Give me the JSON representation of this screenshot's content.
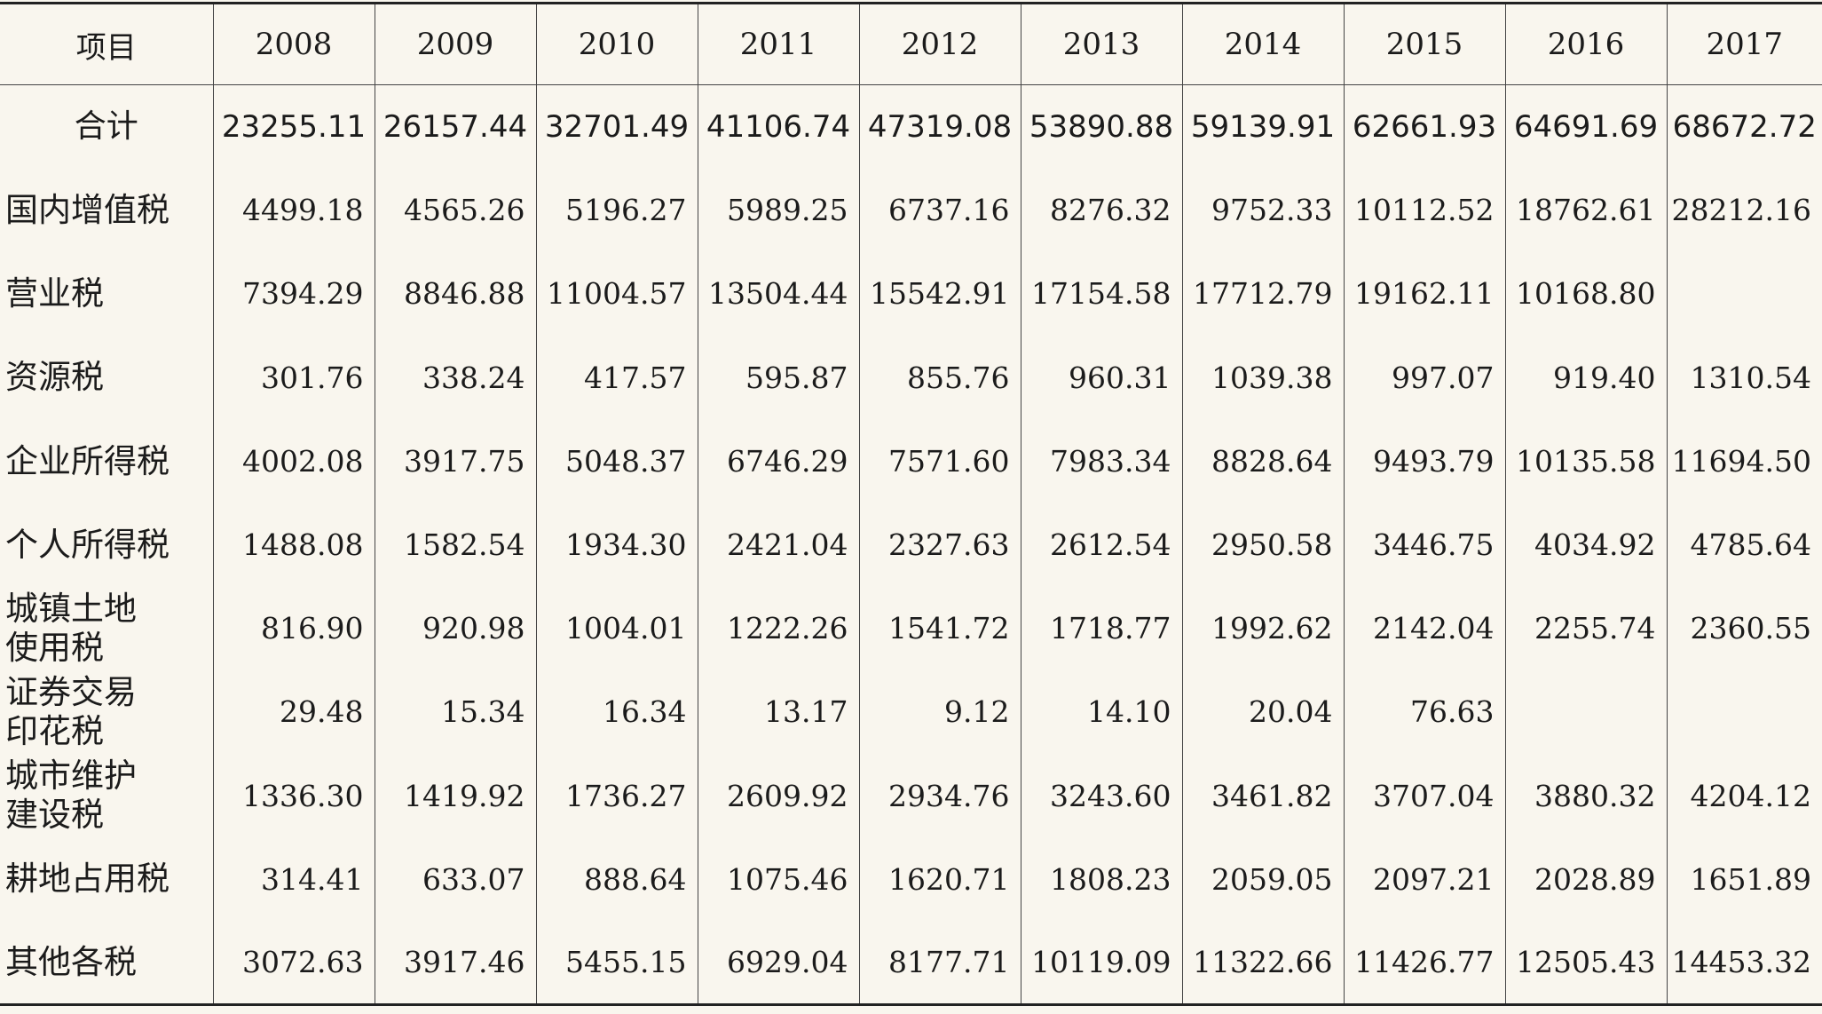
{
  "table": {
    "header_label": "项目",
    "years": [
      "2008",
      "2009",
      "2010",
      "2011",
      "2012",
      "2013",
      "2014",
      "2015",
      "2016",
      "2017"
    ],
    "total_row": {
      "label": "合计",
      "values": [
        "23255.11",
        "26157.44",
        "32701.49",
        "41106.74",
        "47319.08",
        "53890.88",
        "59139.91",
        "62661.93",
        "64691.69",
        "68672.72"
      ]
    },
    "rows": [
      {
        "label": "国内增值税",
        "values": [
          "4499.18",
          "4565.26",
          "5196.27",
          "5989.25",
          "6737.16",
          "8276.32",
          "9752.33",
          "10112.52",
          "18762.61",
          "28212.16"
        ]
      },
      {
        "label": "营业税",
        "values": [
          "7394.29",
          "8846.88",
          "11004.57",
          "13504.44",
          "15542.91",
          "17154.58",
          "17712.79",
          "19162.11",
          "10168.80",
          ""
        ]
      },
      {
        "label": "资源税",
        "values": [
          "301.76",
          "338.24",
          "417.57",
          "595.87",
          "855.76",
          "960.31",
          "1039.38",
          "997.07",
          "919.40",
          "1310.54"
        ]
      },
      {
        "label": "企业所得税",
        "values": [
          "4002.08",
          "3917.75",
          "5048.37",
          "6746.29",
          "7571.60",
          "7983.34",
          "8828.64",
          "9493.79",
          "10135.58",
          "11694.50"
        ]
      },
      {
        "label": "个人所得税",
        "values": [
          "1488.08",
          "1582.54",
          "1934.30",
          "2421.04",
          "2327.63",
          "2612.54",
          "2950.58",
          "3446.75",
          "4034.92",
          "4785.64"
        ]
      },
      {
        "label": "城镇土地使用税",
        "label_lines": [
          "城镇土地",
          "使用税"
        ],
        "values": [
          "816.90",
          "920.98",
          "1004.01",
          "1222.26",
          "1541.72",
          "1718.77",
          "1992.62",
          "2142.04",
          "2255.74",
          "2360.55"
        ]
      },
      {
        "label": "证券交易印花税",
        "label_lines": [
          "证券交易",
          "印花税"
        ],
        "values": [
          "29.48",
          "15.34",
          "16.34",
          "13.17",
          "9.12",
          "14.10",
          "20.04",
          "76.63",
          "",
          ""
        ]
      },
      {
        "label": "城市维护建设税",
        "label_lines": [
          "城市维护",
          "建设税"
        ],
        "values": [
          "1336.30",
          "1419.92",
          "1736.27",
          "2609.92",
          "2934.76",
          "3243.60",
          "3461.82",
          "3707.04",
          "3880.32",
          "4204.12"
        ]
      },
      {
        "label": "耕地占用税",
        "values": [
          "314.41",
          "633.07",
          "888.64",
          "1075.46",
          "1620.71",
          "1808.23",
          "2059.05",
          "2097.21",
          "2028.89",
          "1651.89"
        ]
      },
      {
        "label": "其他各税",
        "values": [
          "3072.63",
          "3917.46",
          "5455.15",
          "6929.04",
          "8177.71",
          "10119.09",
          "11322.66",
          "11426.77",
          "12505.43",
          "14453.32"
        ]
      }
    ]
  }
}
